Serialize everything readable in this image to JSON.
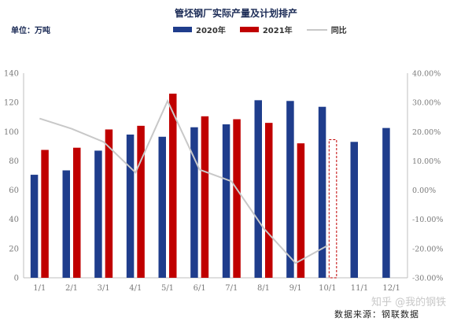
{
  "title": "管坯钢厂实际产量及计划排产",
  "unit_label": "单位：万吨",
  "legend": [
    {
      "label": "2020年",
      "kind": "bar",
      "color": "#1f3d8c"
    },
    {
      "label": "2021年",
      "kind": "bar",
      "color": "#c00000"
    },
    {
      "label": "同比",
      "kind": "line",
      "color": "#c8c8c8"
    }
  ],
  "source": "数据来源：钢联数据",
  "watermark": "知乎 @我的钢铁",
  "chart_data": {
    "type": "bar",
    "title": "管坯钢厂实际产量及计划排产",
    "categories": [
      "1/1",
      "2/1",
      "3/1",
      "4/1",
      "5/1",
      "6/1",
      "7/1",
      "8/1",
      "9/1",
      "10/1",
      "11/1",
      "12/1"
    ],
    "series": [
      {
        "name": "2020年",
        "color": "#1f3d8c",
        "values": [
          70.5,
          73.5,
          87,
          98,
          96.5,
          103,
          105,
          121.5,
          121,
          117,
          93,
          102.5
        ]
      },
      {
        "name": "2021年",
        "color": "#c00000",
        "values": [
          87.5,
          89,
          101.5,
          104,
          126,
          110.5,
          108.5,
          106,
          92,
          94.5,
          null,
          null
        ],
        "planned_index": 9
      }
    ],
    "line": {
      "name": "同比",
      "axis": "right",
      "color": "#c8c8c8",
      "values": [
        24.5,
        21,
        16.5,
        6,
        30.5,
        7,
        3,
        -13,
        -25,
        -19,
        null,
        null
      ]
    },
    "y_left": {
      "min": 0,
      "max": 140,
      "step": 20,
      "ticks": [
        "0",
        "20",
        "40",
        "60",
        "80",
        "100",
        "120",
        "140"
      ]
    },
    "y_right": {
      "min": -30,
      "max": 40,
      "step": 10,
      "ticks": [
        "-30.00%",
        "-20.00%",
        "-10.00%",
        "0.00%",
        "10.00%",
        "20.00%",
        "30.00%",
        "40.00%"
      ]
    },
    "grid": false,
    "legend_position": "top"
  }
}
